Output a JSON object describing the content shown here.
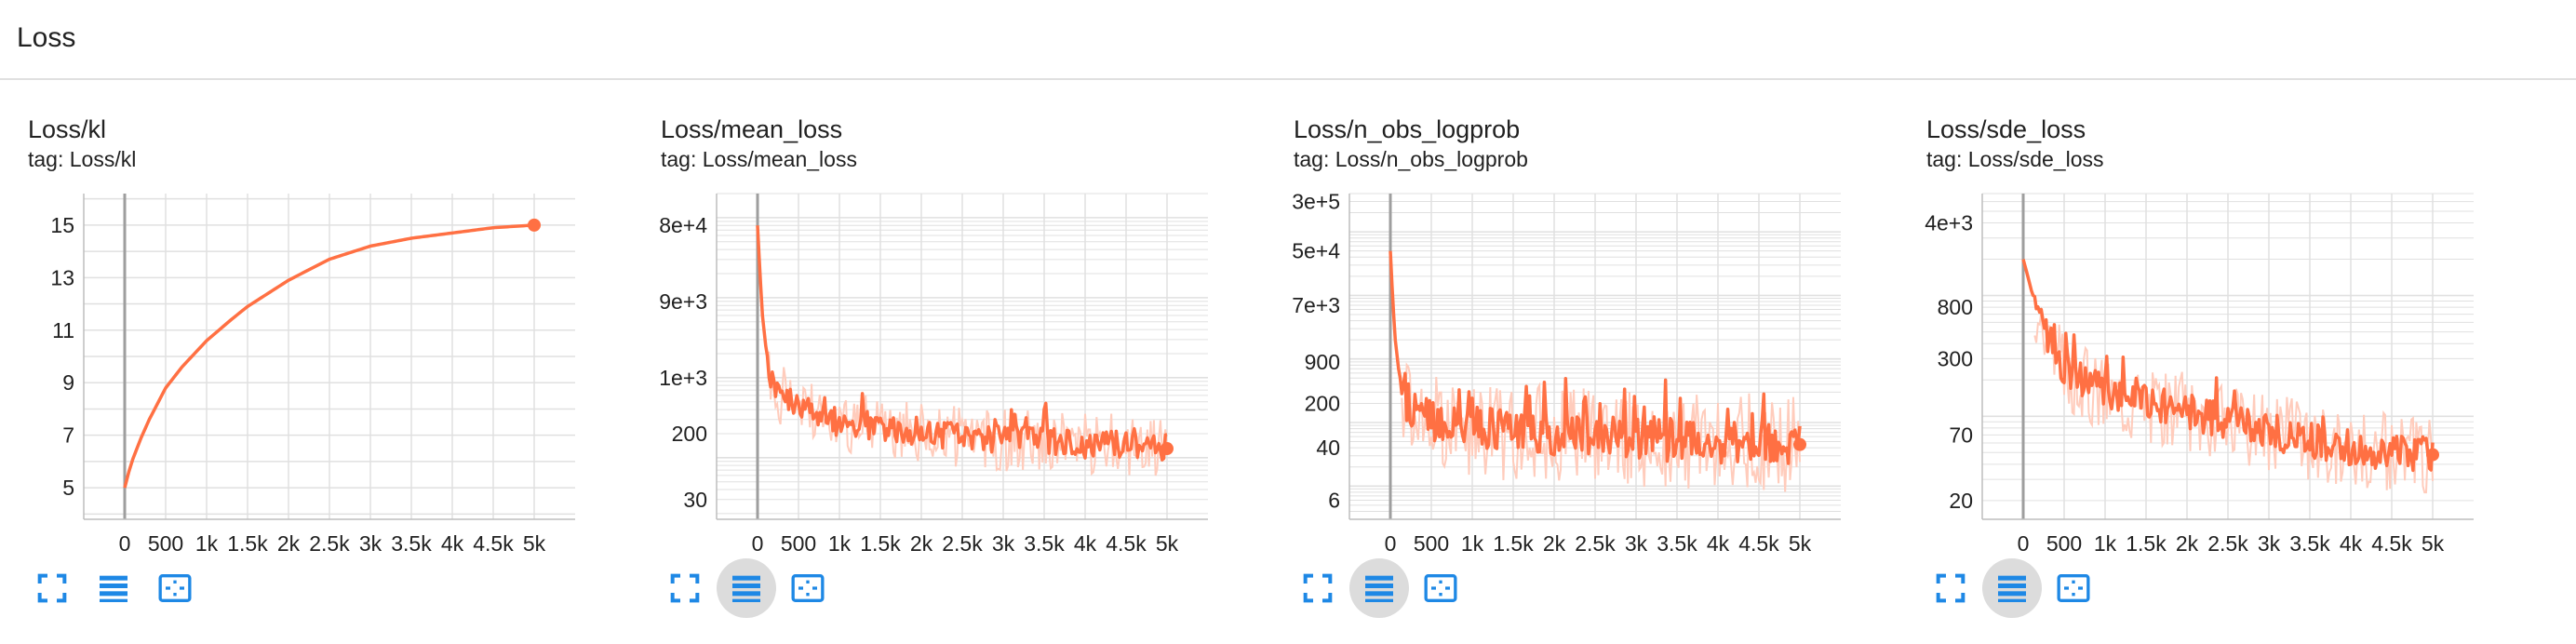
{
  "section": {
    "title": "Loss"
  },
  "colors": {
    "line": "#ff7043",
    "smooth_raw": "#ffccbc",
    "grid": "#e0e0e0",
    "zero_line": "#9e9e9e",
    "icon": "#1e88e5",
    "axis_text": "#212121"
  },
  "toolbar_icons": [
    "fullscreen-icon",
    "data-table-icon",
    "fit-domain-icon"
  ],
  "cards": [
    {
      "title": "Loss/kl",
      "tag": "tag: Loss/kl",
      "table_active": false,
      "chart_data": {
        "type": "line",
        "title": "Loss/kl",
        "scale": "linear",
        "xlim": [
          -500,
          5500
        ],
        "ylim": [
          3.8,
          16.2
        ],
        "xticks": [
          0,
          500,
          1000,
          1500,
          2000,
          2500,
          3000,
          3500,
          4000,
          4500,
          5000
        ],
        "xtick_labels": [
          "0",
          "500",
          "1k",
          "1.5k",
          "2k",
          "2.5k",
          "3k",
          "3.5k",
          "4k",
          "4.5k",
          "5k"
        ],
        "yticks": [
          5,
          7,
          9,
          11,
          13,
          15
        ],
        "ytick_labels": [
          "5",
          "7",
          "9",
          "11",
          "13",
          "15"
        ],
        "grid": true,
        "series": [
          {
            "x": [
              0,
              50,
              100,
              200,
              300,
              400,
              500,
              700,
              1000,
              1300,
              1500,
              2000,
              2500,
              3000,
              3500,
              4000,
              4500,
              5000
            ],
            "y": [
              5.0,
              5.6,
              6.1,
              6.9,
              7.6,
              8.2,
              8.8,
              9.6,
              10.6,
              11.4,
              11.9,
              12.9,
              13.7,
              14.2,
              14.5,
              14.7,
              14.9,
              15.0
            ]
          }
        ]
      }
    },
    {
      "title": "Loss/mean_loss",
      "tag": "tag: Loss/mean_loss",
      "table_active": true,
      "chart_data": {
        "type": "line",
        "title": "Loss/mean_loss",
        "scale": "log",
        "xlim": [
          -500,
          5500
        ],
        "ylim": [
          17,
          200000
        ],
        "xticks": [
          0,
          500,
          1000,
          1500,
          2000,
          2500,
          3000,
          3500,
          4000,
          4500,
          5000
        ],
        "xtick_labels": [
          "0",
          "500",
          "1k",
          "1.5k",
          "2k",
          "2.5k",
          "3k",
          "3.5k",
          "4k",
          "4.5k",
          "5k"
        ],
        "yticks": [
          30,
          200,
          1000,
          9000,
          80000
        ],
        "ytick_labels": [
          "30",
          "200",
          "1e+3",
          "9e+3",
          "8e+4"
        ],
        "grid": true,
        "series": [
          {
            "x": [
              0,
              30,
              60,
              100,
              150,
              200,
              300,
              400,
              500,
              700,
              1000,
              1500,
              2000,
              2500,
              3000,
              3500,
              4000,
              4500,
              4900,
              5000
            ],
            "y": [
              80000,
              20000,
              6000,
              2500,
              1200,
              800,
              600,
              500,
              450,
              350,
              280,
              230,
              210,
              190,
              170,
              160,
              150,
              140,
              130,
              130
            ],
            "noise": 0.18
          }
        ]
      }
    },
    {
      "title": "Loss/n_obs_logprob",
      "tag": "tag: Loss/n_obs_logprob",
      "table_active": true,
      "chart_data": {
        "type": "line",
        "title": "Loss/n_obs_logprob",
        "scale": "log",
        "xlim": [
          -500,
          5500
        ],
        "ylim": [
          3,
          400000
        ],
        "xticks": [
          0,
          500,
          1000,
          1500,
          2000,
          2500,
          3000,
          3500,
          4000,
          4500,
          5000
        ],
        "xtick_labels": [
          "0",
          "500",
          "1k",
          "1.5k",
          "2k",
          "2.5k",
          "3k",
          "3.5k",
          "4k",
          "4.5k",
          "5k"
        ],
        "yticks": [
          6,
          40,
          200,
          900,
          7000,
          50000,
          300000
        ],
        "ytick_labels": [
          "6",
          "40",
          "200",
          "900",
          "7e+3",
          "5e+4",
          "3e+5"
        ],
        "grid": true,
        "series": [
          {
            "x": [
              0,
              30,
              60,
              100,
              150,
              200,
              300,
              500,
              800,
              1000,
              1500,
              2000,
              2500,
              3000,
              3500,
              4000,
              4500,
              4900,
              5000
            ],
            "y": [
              50000,
              8000,
              2000,
              700,
              300,
              200,
              150,
              110,
              90,
              80,
              70,
              65,
              60,
              55,
              55,
              50,
              50,
              45,
              45
            ],
            "noise": 0.35
          }
        ]
      }
    },
    {
      "title": "Loss/sde_loss",
      "tag": "tag: Loss/sde_loss",
      "table_active": true,
      "chart_data": {
        "type": "line",
        "title": "Loss/sde_loss",
        "scale": "log",
        "xlim": [
          -500,
          5500
        ],
        "ylim": [
          14,
          7000
        ],
        "xticks": [
          0,
          500,
          1000,
          1500,
          2000,
          2500,
          3000,
          3500,
          4000,
          4500,
          5000
        ],
        "xtick_labels": [
          "0",
          "500",
          "1k",
          "1.5k",
          "2k",
          "2.5k",
          "3k",
          "3.5k",
          "4k",
          "4.5k",
          "5k"
        ],
        "yticks": [
          20,
          70,
          300,
          800,
          4000
        ],
        "ytick_labels": [
          "20",
          "70",
          "300",
          "800",
          "4e+3"
        ],
        "grid": true,
        "series": [
          {
            "x": [
              0,
              50,
              100,
              200,
              300,
              400,
              500,
              700,
              1000,
              1500,
              2000,
              2500,
              3000,
              3500,
              4000,
              4500,
              5000
            ],
            "y": [
              2000,
              1500,
              1100,
              700,
              450,
              330,
              260,
              200,
              160,
              130,
              110,
              90,
              75,
              62,
              55,
              50,
              48
            ],
            "noise": 0.15
          }
        ]
      }
    }
  ]
}
